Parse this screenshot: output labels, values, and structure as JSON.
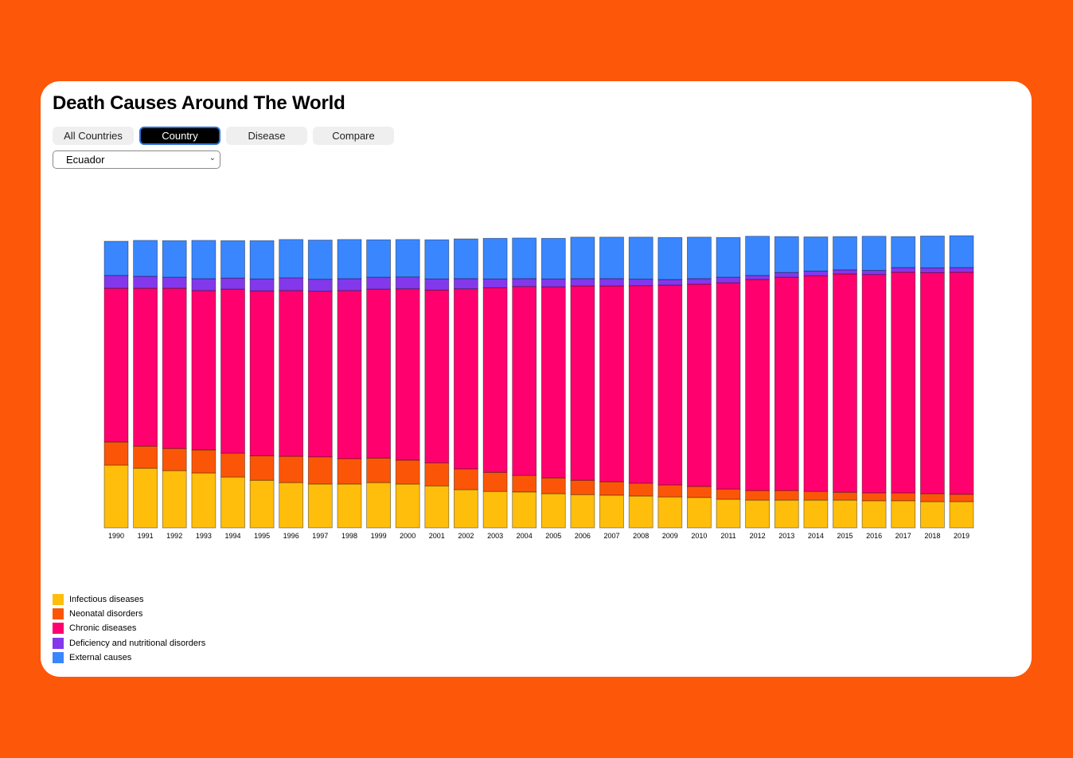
{
  "header": {
    "title": "Death Causes Around The World"
  },
  "tabs": [
    {
      "label": "All Countries",
      "active": false
    },
    {
      "label": "Country",
      "active": true
    },
    {
      "label": "Disease",
      "active": false
    },
    {
      "label": "Compare",
      "active": false
    }
  ],
  "country_select": {
    "value": "Ecuador"
  },
  "chart_data": {
    "type": "bar",
    "stacked": true,
    "title": "",
    "xlabel": "",
    "ylabel": "",
    "ylim": [
      0,
      100
    ],
    "grid": false,
    "legend_position": "bottom-left",
    "categories": [
      "1990",
      "1991",
      "1992",
      "1993",
      "1994",
      "1995",
      "1996",
      "1997",
      "1998",
      "1999",
      "2000",
      "2001",
      "2002",
      "2003",
      "2004",
      "2005",
      "2006",
      "2007",
      "2008",
      "2009",
      "2010",
      "2011",
      "2012",
      "2013",
      "2014",
      "2015",
      "2016",
      "2017",
      "2018",
      "2019"
    ],
    "series": [
      {
        "name": "Infectious diseases",
        "color": "#ffbe0b",
        "values": [
          21.5,
          20.4,
          19.6,
          18.8,
          17.4,
          16.3,
          15.5,
          15.0,
          15.0,
          15.5,
          15.0,
          14.4,
          13.1,
          12.5,
          12.3,
          11.7,
          11.4,
          11.2,
          10.9,
          10.6,
          10.4,
          9.8,
          9.5,
          9.5,
          9.5,
          9.5,
          9.3,
          9.3,
          9.0,
          9.0
        ]
      },
      {
        "name": "Neonatal disorders",
        "color": "#fb5607",
        "values": [
          7.9,
          7.6,
          7.6,
          7.9,
          8.2,
          8.4,
          9.0,
          9.3,
          8.7,
          8.4,
          8.2,
          7.9,
          7.1,
          6.5,
          5.7,
          5.4,
          4.9,
          4.6,
          4.4,
          4.1,
          3.8,
          3.5,
          3.3,
          3.3,
          3.0,
          2.7,
          2.7,
          2.7,
          2.7,
          2.5
        ]
      },
      {
        "name": "Chronic diseases",
        "color": "#ff006e",
        "values": [
          52.6,
          54.0,
          54.8,
          54.5,
          56.1,
          56.4,
          56.7,
          56.7,
          57.5,
          57.8,
          58.6,
          59.1,
          61.6,
          63.2,
          64.6,
          65.4,
          66.5,
          67.0,
          67.6,
          68.4,
          69.2,
          70.6,
          72.2,
          73.0,
          73.8,
          74.7,
          74.7,
          75.5,
          75.7,
          76.0
        ]
      },
      {
        "name": "Deficiency and nutritional disorders",
        "color": "#8338ec",
        "values": [
          4.4,
          4.1,
          3.8,
          4.1,
          3.8,
          4.1,
          4.4,
          4.1,
          4.1,
          4.1,
          4.1,
          3.8,
          3.5,
          3.0,
          2.7,
          2.7,
          2.5,
          2.5,
          2.2,
          1.9,
          1.9,
          1.9,
          1.4,
          1.6,
          1.6,
          1.4,
          1.4,
          1.6,
          1.6,
          1.6
        ]
      },
      {
        "name": "External causes",
        "color": "#3a86ff",
        "values": [
          11.7,
          12.3,
          12.5,
          13.1,
          12.8,
          13.1,
          13.1,
          13.4,
          13.4,
          12.8,
          12.8,
          13.4,
          13.6,
          13.9,
          13.9,
          13.9,
          14.2,
          14.2,
          14.4,
          14.4,
          14.2,
          13.6,
          13.4,
          12.3,
          11.7,
          11.4,
          11.7,
          10.6,
          10.9,
          10.9
        ]
      }
    ]
  }
}
